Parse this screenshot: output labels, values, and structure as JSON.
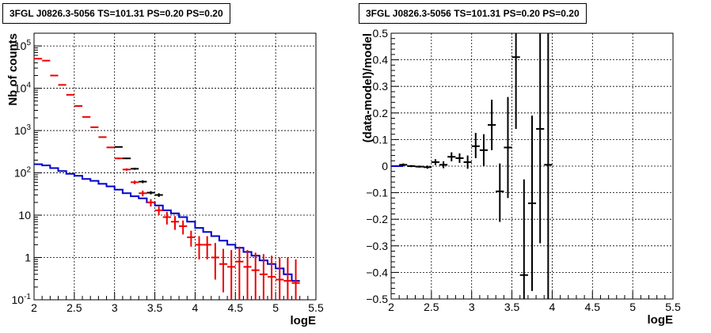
{
  "chart_data": [
    {
      "type": "line",
      "title": "3FGL J0826.3-5056 TS=101.31 PS=0.20 PS=0.20",
      "xlabel": "logE",
      "ylabel": "Nb of counts",
      "xlim": [
        2,
        5.5
      ],
      "ylim": [
        0.1,
        200000
      ],
      "yscale": "log",
      "grid": true,
      "xticks": [
        "2",
        "2.5",
        "3",
        "3.5",
        "4",
        "4.5",
        "5",
        "5.5"
      ],
      "yticks": [
        {
          "value": 0.1,
          "label": "10",
          "exp": "-1"
        },
        {
          "value": 1,
          "label": "1",
          "exp": ""
        },
        {
          "value": 10,
          "label": "10",
          "exp": ""
        },
        {
          "value": 100,
          "label": "10",
          "exp": "2"
        },
        {
          "value": 1000,
          "label": "10",
          "exp": "3"
        },
        {
          "value": 10000,
          "label": "10",
          "exp": "4"
        },
        {
          "value": 100000,
          "label": "10",
          "exp": "5"
        }
      ],
      "series": [
        {
          "role": "blue-model-histogram",
          "color": "#0000cc",
          "bin_edges": [
            2.0,
            2.1,
            2.2,
            2.3,
            2.4,
            2.5,
            2.6,
            2.7,
            2.8,
            2.9,
            3.0,
            3.1,
            3.2,
            3.3,
            3.4,
            3.5,
            3.6,
            3.7,
            3.8,
            3.9,
            4.0,
            4.1,
            4.2,
            4.3,
            4.4,
            4.5,
            4.6,
            4.7,
            4.8,
            4.9,
            5.0,
            5.1,
            5.2,
            5.3
          ],
          "values": [
            160,
            150,
            130,
            110,
            95,
            85,
            72,
            65,
            55,
            48,
            40,
            33,
            28,
            25,
            20,
            17,
            13,
            11,
            9,
            7,
            5,
            4,
            3.2,
            2.5,
            2.0,
            1.7,
            1.35,
            1.1,
            0.85,
            0.7,
            0.55,
            0.4,
            0.28
          ]
        },
        {
          "role": "red-data-points",
          "color": "#ee0000",
          "x": [
            2.05,
            2.15,
            2.25,
            2.35,
            2.45,
            2.55,
            2.65,
            2.75,
            2.85,
            2.95,
            3.05,
            3.15,
            3.25,
            3.35,
            3.45,
            3.55,
            3.65,
            3.75,
            3.85,
            3.95,
            4.05,
            4.15,
            4.25,
            4.35,
            4.45,
            4.55,
            4.65,
            4.75,
            4.85,
            4.95,
            5.05,
            5.15,
            5.25
          ],
          "y": [
            50000,
            45000,
            20000,
            12000,
            7000,
            3800,
            2100,
            1200,
            700,
            400,
            220,
            120,
            60,
            33,
            20,
            13,
            9,
            7,
            5.5,
            3,
            2,
            2,
            1,
            0.7,
            0.6,
            0.8,
            0.6,
            0.5,
            0.4,
            0.35,
            0.3,
            0.28,
            0.25
          ],
          "y_low": [
            49500,
            44500,
            19800,
            11800,
            6900,
            3750,
            2050,
            1170,
            680,
            385,
            210,
            112,
            54,
            28,
            16,
            10,
            6,
            4.5,
            3.5,
            1.8,
            0.9,
            0.9,
            0.3,
            0.15,
            0.1,
            0.1,
            0.1,
            0.1,
            0.1,
            0.1,
            0.1,
            0.1,
            0.1
          ],
          "y_high": [
            50500,
            45500,
            20200,
            12200,
            7100,
            3850,
            2150,
            1230,
            720,
            415,
            230,
            128,
            66,
            38,
            24,
            16,
            12,
            9.5,
            7.5,
            4.3,
            3.2,
            3.2,
            2.2,
            1.6,
            1.5,
            1.8,
            1.5,
            1.3,
            1.2,
            1.1,
            1.0,
            1.0,
            0.9
          ]
        },
        {
          "role": "black-data-points",
          "color": "#000000",
          "x": [
            3.05,
            3.15,
            3.25,
            3.35,
            3.45,
            3.55
          ],
          "y": [
            410,
            220,
            125,
            62,
            34,
            30
          ],
          "y_low": [
            400,
            212,
            118,
            57,
            31,
            27
          ],
          "y_high": [
            420,
            228,
            132,
            67,
            37,
            33
          ]
        }
      ]
    },
    {
      "type": "scatter",
      "title": "3FGL J0826.3-5056 TS=101.31 PS=0.20 PS=0.20",
      "xlabel": "logE",
      "ylabel": "(data-model)/model",
      "xlim": [
        2,
        5.5
      ],
      "ylim": [
        -0.5,
        0.5
      ],
      "grid": true,
      "xticks": [
        "2",
        "2.5",
        "3",
        "3.5",
        "4",
        "4.5",
        "5",
        "5.5"
      ],
      "yticks": [
        "−0.5",
        "−0.4",
        "−0.3",
        "−0.2",
        "−0.1",
        "0",
        "0.1",
        "0.2",
        "0.3",
        "0.4",
        "0.5"
      ],
      "ytick_values": [
        -0.5,
        -0.4,
        -0.3,
        -0.2,
        -0.1,
        0,
        0.1,
        0.2,
        0.3,
        0.4,
        0.5
      ],
      "baseline": {
        "color": "#0000cc",
        "x_range": [
          2.0,
          2.15
        ],
        "y": 0
      },
      "series": [
        {
          "role": "residuals",
          "color": "#000000",
          "x": [
            2.15,
            2.25,
            2.35,
            2.45,
            2.55,
            2.65,
            2.75,
            2.85,
            2.95,
            3.05,
            3.15,
            3.25,
            3.35,
            3.45,
            3.55,
            3.65,
            3.75,
            3.85,
            3.95
          ],
          "y": [
            0.005,
            0.0,
            -0.002,
            -0.004,
            0.015,
            0.005,
            0.035,
            0.03,
            0.015,
            0.075,
            0.06,
            0.155,
            -0.095,
            0.07,
            0.41,
            -0.41,
            -0.14,
            0.14,
            0.005
          ],
          "y_low": [
            0.0,
            -0.004,
            -0.006,
            -0.01,
            0.004,
            -0.008,
            0.018,
            0.012,
            -0.01,
            0.03,
            0.0,
            0.06,
            -0.21,
            -0.12,
            0.14,
            -0.62,
            -0.47,
            -0.29,
            -0.62
          ],
          "y_high": [
            0.01,
            0.004,
            0.002,
            0.002,
            0.026,
            0.018,
            0.052,
            0.048,
            0.04,
            0.125,
            0.12,
            0.25,
            0.01,
            0.26,
            0.62,
            -0.05,
            0.19,
            0.62,
            0.62
          ],
          "half_width": 0.05
        }
      ]
    }
  ]
}
